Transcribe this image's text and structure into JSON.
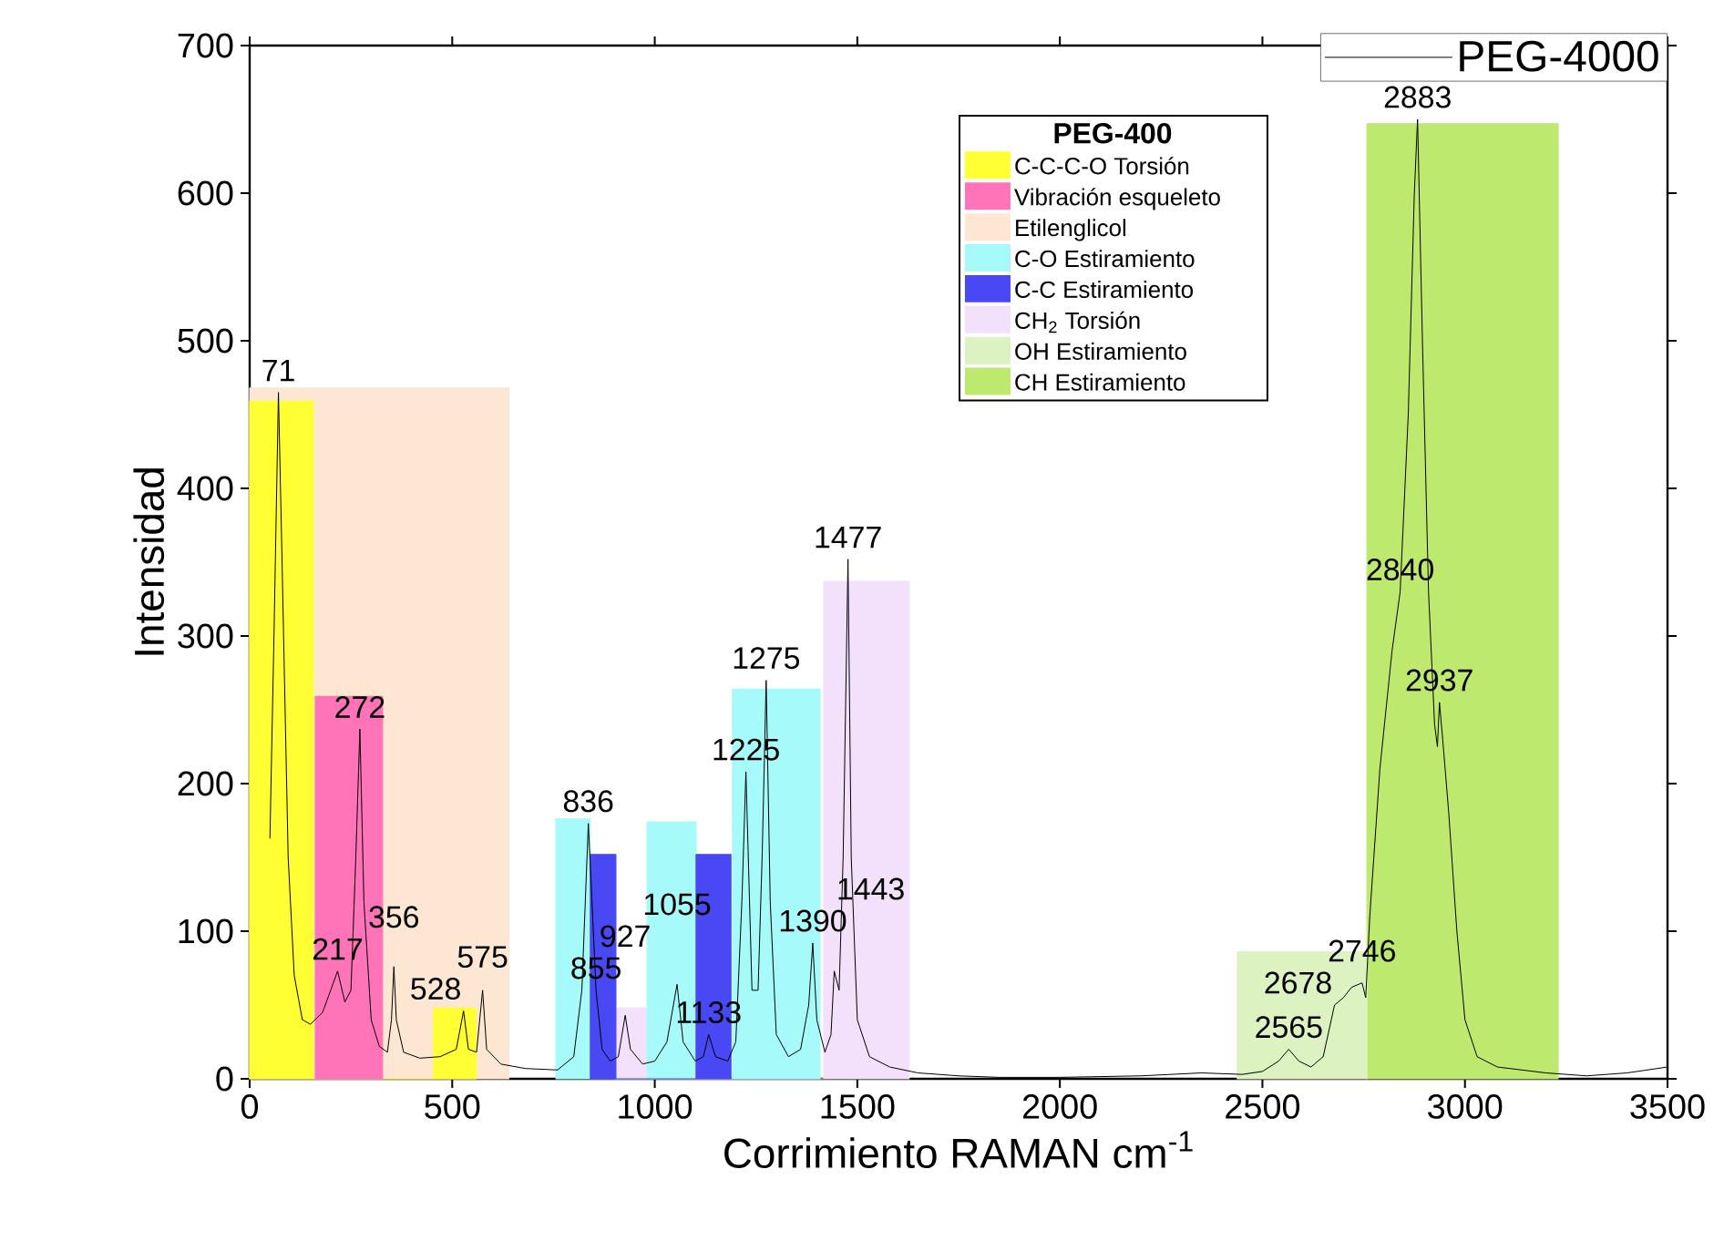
{
  "chart_data": {
    "type": "line",
    "xlabel": "Corrimiento RAMAN cm$^{-1}$",
    "ylabel": "Intensidad",
    "legend_title": "PEG-400",
    "xlim": [
      0,
      3500
    ],
    "xticks": [
      0,
      500,
      1000,
      1500,
      2000,
      2500,
      3000,
      3500
    ],
    "ylim": [
      0,
      700
    ],
    "yticks": [
      0,
      100,
      200,
      300,
      400,
      500,
      600,
      700
    ],
    "legend": "top right",
    "grid": false,
    "marker": "none",
    "line_style": "solid",
    "series": [
      {
        "name": "PEG-4000",
        "color": "#000000",
        "x": [
          50,
          60,
          71,
          80,
          95,
          110,
          130,
          150,
          180,
          200,
          217,
          235,
          250,
          262,
          272,
          282,
          300,
          320,
          340,
          350,
          356,
          362,
          380,
          420,
          470,
          510,
          528,
          540,
          560,
          575,
          585,
          620,
          680,
          760,
          800,
          820,
          836,
          845,
          855,
          870,
          890,
          910,
          927,
          940,
          970,
          1000,
          1030,
          1055,
          1070,
          1100,
          1120,
          1133,
          1150,
          1180,
          1200,
          1215,
          1225,
          1240,
          1255,
          1265,
          1275,
          1285,
          1300,
          1330,
          1360,
          1380,
          1390,
          1400,
          1420,
          1435,
          1443,
          1455,
          1465,
          1477,
          1485,
          1500,
          1530,
          1580,
          1650,
          1750,
          1850,
          2000,
          2200,
          2350,
          2450,
          2500,
          2540,
          2565,
          2590,
          2620,
          2650,
          2670,
          2678,
          2700,
          2720,
          2746,
          2755,
          2765,
          2790,
          2820,
          2840,
          2860,
          2875,
          2883,
          2895,
          2910,
          2925,
          2932,
          2937,
          2945,
          2960,
          2980,
          3000,
          3030,
          3080,
          3200,
          3300,
          3400,
          3450,
          3500
        ],
        "values": [
          163,
          300,
          465,
          350,
          150,
          70,
          40,
          37,
          45,
          60,
          73,
          52,
          60,
          150,
          237,
          120,
          40,
          22,
          18,
          40,
          76,
          40,
          18,
          14,
          15,
          20,
          46,
          20,
          18,
          60,
          20,
          10,
          7,
          6,
          15,
          60,
          173,
          120,
          60,
          20,
          12,
          15,
          43,
          20,
          10,
          12,
          25,
          64,
          25,
          12,
          15,
          30,
          15,
          12,
          25,
          120,
          208,
          60,
          60,
          150,
          270,
          120,
          30,
          15,
          20,
          50,
          92,
          40,
          18,
          30,
          73,
          60,
          150,
          352,
          150,
          40,
          15,
          8,
          4,
          2,
          1,
          1,
          2,
          4,
          3,
          5,
          12,
          20,
          12,
          8,
          15,
          40,
          50,
          55,
          62,
          65,
          55,
          110,
          210,
          290,
          330,
          450,
          600,
          650,
          500,
          330,
          240,
          225,
          255,
          230,
          180,
          100,
          40,
          15,
          8,
          4,
          2,
          4,
          6,
          8
        ]
      },
      {
        "name": "C-C-C-O Torsión",
        "type": "area",
        "color": "#ffff33",
        "x": [
          0,
          0,
          157,
          157,
          454,
          454,
          559,
          559
        ],
        "values": [
          0,
          459,
          459,
          0,
          0,
          48,
          48,
          0
        ]
      },
      {
        "name": "Vibración esqueleto",
        "type": "area",
        "color": "#ff73b9",
        "x": [
          162,
          162,
          328,
          328
        ],
        "values": [
          0,
          259,
          259,
          0
        ]
      },
      {
        "name": "Etilenglicol",
        "type": "area",
        "color": "#fde6d2",
        "x": [
          0,
          0,
          640,
          640
        ],
        "values": [
          0,
          468,
          468,
          0
        ]
      },
      {
        "name": "C-O Estiramiento",
        "type": "area",
        "color": "#a6fafa",
        "x": [
          756,
          756,
          841,
          841,
          981,
          981,
          1102,
          1102,
          1192,
          1192,
          1408,
          1408
        ],
        "values": [
          0,
          176,
          176,
          0,
          0,
          174,
          174,
          0,
          0,
          264,
          264,
          0
        ]
      },
      {
        "name": "C-C Estiramiento",
        "type": "area",
        "color": "#4848f4",
        "x": [
          841,
          841,
          904,
          904,
          1102,
          1102,
          1188,
          1188
        ],
        "values": [
          0,
          152,
          152,
          0,
          0,
          152,
          152,
          0
        ]
      },
      {
        "name": "CH$_{2}$ Torsión",
        "type": "area",
        "color": "#f3e0fa",
        "x": [
          904,
          904,
          981,
          981,
          1417,
          1417,
          1628,
          1628
        ],
        "values": [
          0,
          48,
          48,
          0,
          0,
          337,
          337,
          0
        ]
      },
      {
        "name": "OH Estiramiento",
        "type": "area",
        "color": "#dcf2c0",
        "x": [
          2438,
          2438,
          2758,
          2758
        ],
        "values": [
          0,
          86,
          86,
          0
        ]
      },
      {
        "name": "CH Estiramiento",
        "type": "area",
        "color": "#bce96e",
        "x": [
          2758,
          2758,
          3230,
          3230
        ],
        "values": [
          0,
          647,
          647,
          0
        ]
      }
    ],
    "annotations": [
      {
        "text": "71",
        "x": 71,
        "y": 465
      },
      {
        "text": "217",
        "x": 217,
        "y": 73
      },
      {
        "text": "272",
        "x": 272,
        "y": 237
      },
      {
        "text": "356",
        "x": 356,
        "y": 76
      },
      {
        "text": "528",
        "x": 528,
        "y": 46
      },
      {
        "text": "575",
        "x": 575,
        "y": 60
      },
      {
        "text": "836",
        "x": 836,
        "y": 173
      },
      {
        "text": "855",
        "x": 855,
        "y": 60
      },
      {
        "text": "927",
        "x": 927,
        "y": 43
      },
      {
        "text": "1055",
        "x": 1055,
        "y": 64
      },
      {
        "text": "1133",
        "x": 1133,
        "y": 30
      },
      {
        "text": "1225",
        "x": 1225,
        "y": 208
      },
      {
        "text": "1275",
        "x": 1275,
        "y": 270
      },
      {
        "text": "1390",
        "x": 1390,
        "y": 92
      },
      {
        "text": "1443",
        "x": 1443,
        "y": 73
      },
      {
        "text": "1477",
        "x": 1477,
        "y": 352
      },
      {
        "text": "2565",
        "x": 2565,
        "y": 20
      },
      {
        "text": "2678",
        "x": 2678,
        "y": 50
      },
      {
        "text": "2746",
        "x": 2746,
        "y": 65
      },
      {
        "text": "2840",
        "x": 2840,
        "y": 330
      },
      {
        "text": "2883",
        "x": 2883,
        "y": 650
      },
      {
        "text": "2937",
        "x": 2937,
        "y": 255
      }
    ]
  }
}
